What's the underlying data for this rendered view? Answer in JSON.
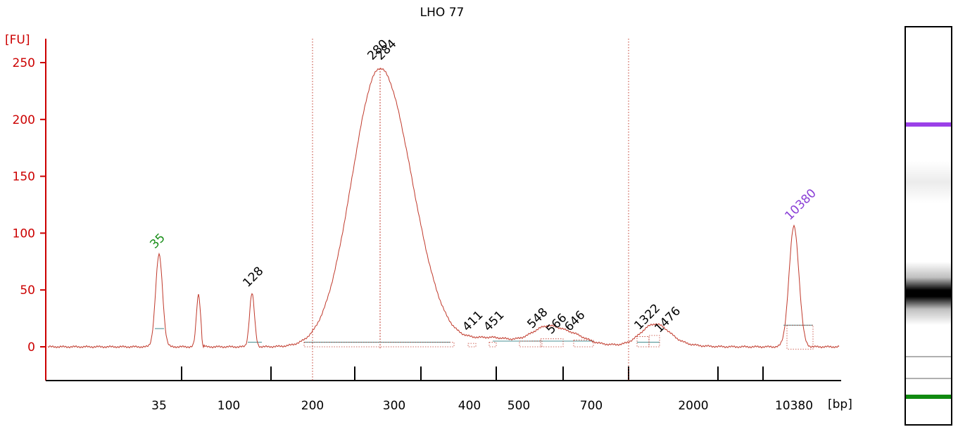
{
  "chart_data": {
    "type": "line",
    "title": "LHO 77",
    "ylabel": "[FU]",
    "xlabel": "[bp]",
    "ylim": [
      -30,
      262
    ],
    "y_ticks": [
      0,
      50,
      100,
      150,
      200,
      250
    ],
    "x_tick_labels": [
      "35",
      "100",
      "200",
      "300",
      "400",
      "500",
      "700",
      "2000",
      "10380"
    ],
    "x_minor_ticks": 8,
    "markers_vertical": [
      "200",
      "700-2000"
    ],
    "peaks": [
      {
        "label": "35",
        "size_bp": 35,
        "height": 81,
        "color": "#1a8f1a"
      },
      {
        "label": "",
        "size_bp": 65,
        "height": 46,
        "color": ""
      },
      {
        "label": "128",
        "size_bp": 128,
        "height": 47,
        "color": ""
      },
      {
        "label": "280",
        "size_bp": 280,
        "height": 245,
        "color": ""
      },
      {
        "label": "284",
        "size_bp": 284,
        "height": 245,
        "color": ""
      },
      {
        "label": "411",
        "size_bp": 411,
        "height": 3,
        "color": ""
      },
      {
        "label": "451",
        "size_bp": 451,
        "height": 4,
        "color": ""
      },
      {
        "label": "548",
        "size_bp": 548,
        "height": 6,
        "color": ""
      },
      {
        "label": "566",
        "size_bp": 566,
        "height": 7,
        "color": ""
      },
      {
        "label": "646",
        "size_bp": 646,
        "height": 6,
        "color": ""
      },
      {
        "label": "1322",
        "size_bp": 1322,
        "height": 9,
        "color": ""
      },
      {
        "label": "1476",
        "size_bp": 1476,
        "height": 10,
        "color": ""
      },
      {
        "label": "10380",
        "size_bp": 10380,
        "height": 106,
        "color": "#8a3fd6"
      }
    ]
  },
  "gel_lane": {
    "bands": [
      {
        "name": "upper-marker",
        "pos": 0.245,
        "color": "#9b40e8",
        "weight": 1.0
      },
      {
        "name": "faint-high",
        "pos": 0.39,
        "color": "#cfcfcf",
        "weight": 0.3
      },
      {
        "name": "main-band",
        "pos": 0.67,
        "color": "#000000",
        "weight": 1.0
      },
      {
        "name": "faint-low-1",
        "pos": 0.83,
        "color": "#b0b0b0",
        "weight": 0.3
      },
      {
        "name": "faint-low-2",
        "pos": 0.885,
        "color": "#b0b0b0",
        "weight": 0.3
      },
      {
        "name": "lower-marker",
        "pos": 0.93,
        "color": "#108a10",
        "weight": 1.0
      }
    ]
  },
  "colors": {
    "axis": "#cc0000",
    "trace": "#c0392b",
    "baseline": "#5f9ea0"
  }
}
